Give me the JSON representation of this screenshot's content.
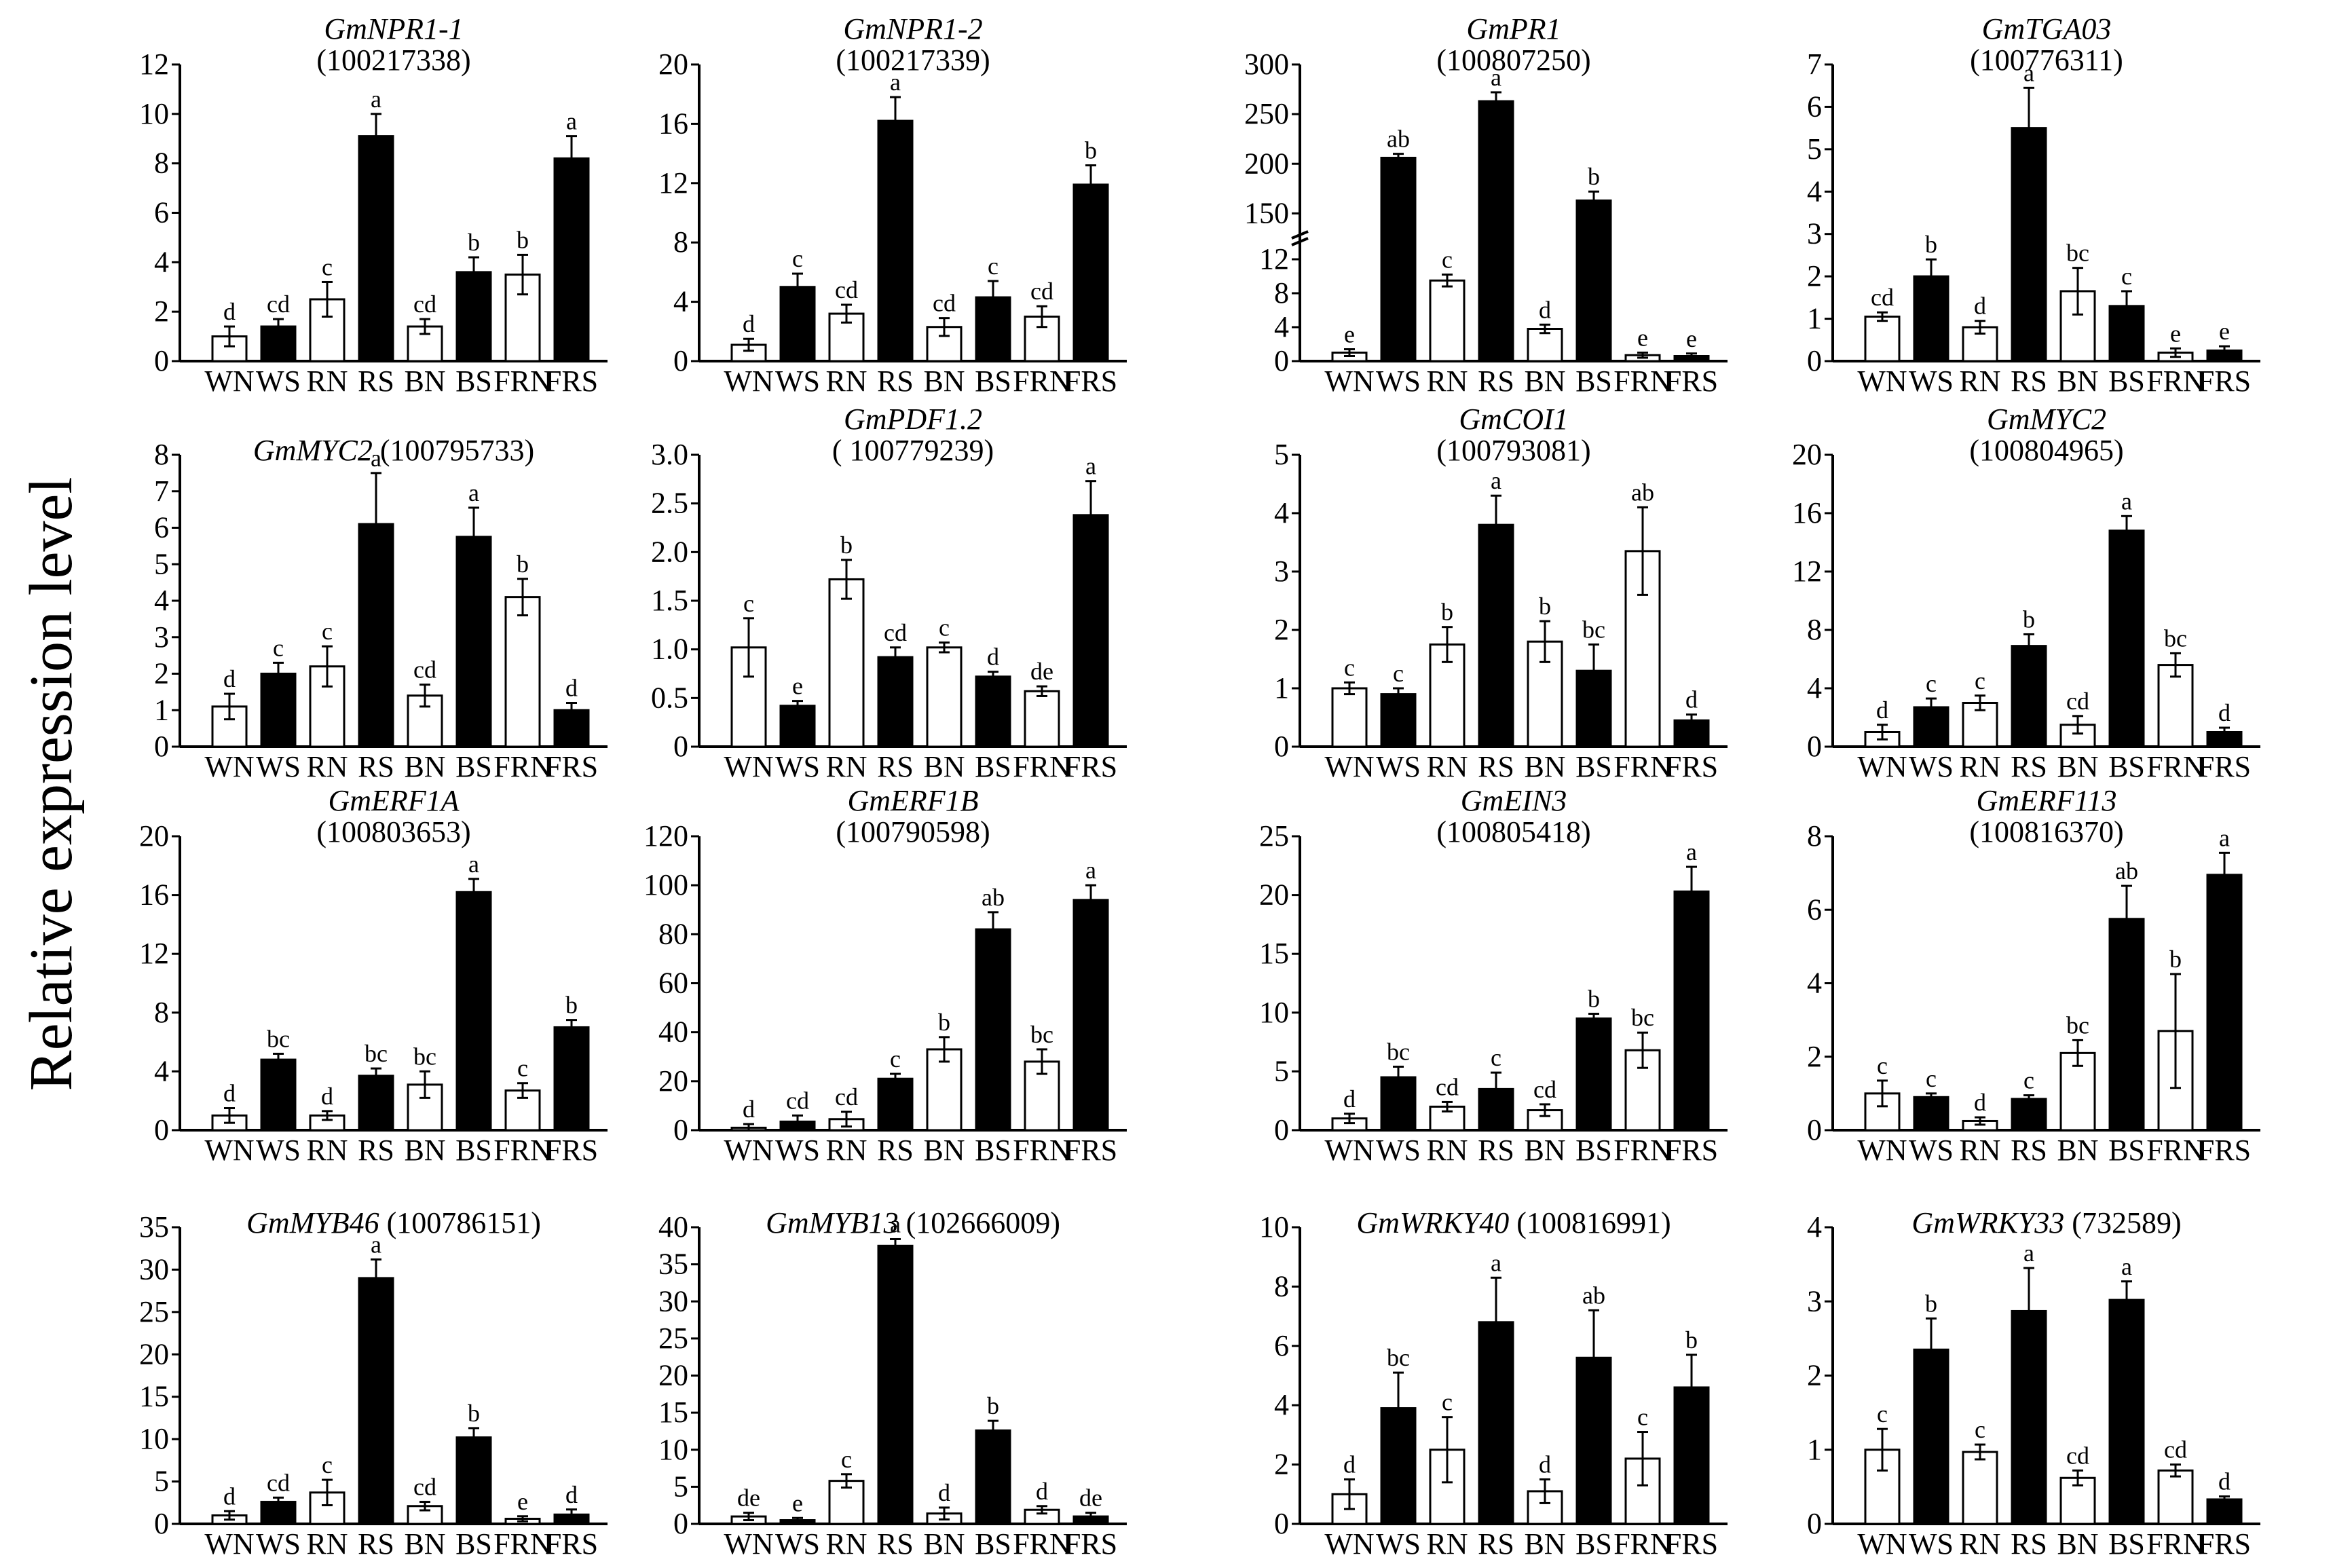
{
  "figure": {
    "y_axis_label": "Relative expression level"
  },
  "colors": {
    "filled": "#000000",
    "open": "#ffffff",
    "stroke": "#000000"
  },
  "chart_data": [
    {
      "type": "bar",
      "title": "GmNPR1-1",
      "title_id": "(100217338)",
      "ylim": [
        0,
        12
      ],
      "yticks": [
        "0",
        "2",
        "4",
        "6",
        "8",
        "10",
        "12"
      ],
      "categories": [
        "WN",
        "WS",
        "RN",
        "RS",
        "BN",
        "BS",
        "FRN",
        "FRS"
      ],
      "filled": [
        false,
        true,
        false,
        true,
        false,
        true,
        false,
        true
      ],
      "values": [
        1.0,
        1.4,
        2.5,
        9.1,
        1.4,
        3.6,
        3.5,
        8.2
      ],
      "errors": [
        0.4,
        0.3,
        0.7,
        0.9,
        0.3,
        0.6,
        0.8,
        0.9
      ],
      "letters": [
        "d",
        "cd",
        "c",
        "a",
        "cd",
        "b",
        "b",
        "a"
      ]
    },
    {
      "type": "bar",
      "title": "GmNPR1-2",
      "title_id": "(100217339)",
      "ylim": [
        0,
        20
      ],
      "yticks": [
        "0",
        "4",
        "8",
        "12",
        "16",
        "20"
      ],
      "categories": [
        "WN",
        "WS",
        "RN",
        "RS",
        "BN",
        "BS",
        "FRN",
        "FRS"
      ],
      "filled": [
        false,
        true,
        false,
        true,
        false,
        true,
        false,
        true
      ],
      "values": [
        1.1,
        5.0,
        3.2,
        16.2,
        2.3,
        4.3,
        3.0,
        11.9
      ],
      "errors": [
        0.4,
        0.9,
        0.6,
        1.6,
        0.6,
        1.1,
        0.7,
        1.3
      ],
      "letters": [
        "d",
        "c",
        "cd",
        "a",
        "cd",
        "c",
        "cd",
        "b"
      ]
    },
    {
      "type": "bar",
      "title": "GmPR1",
      "title_id": "(100807250)",
      "broken_axis": true,
      "ylim": [
        0,
        300
      ],
      "yticks": [
        "0",
        "4",
        "8",
        "12",
        "150",
        "200",
        "250",
        "300"
      ],
      "categories": [
        "WN",
        "WS",
        "RN",
        "RS",
        "BN",
        "BS",
        "FRN",
        "FRS"
      ],
      "filled": [
        false,
        true,
        false,
        true,
        false,
        true,
        false,
        true
      ],
      "values": [
        1.0,
        206,
        9.5,
        263,
        3.8,
        163,
        0.7,
        0.6
      ],
      "errors": [
        0.4,
        4,
        0.7,
        9,
        0.5,
        9,
        0.3,
        0.3
      ],
      "letters": [
        "e",
        "ab",
        "c",
        "a",
        "d",
        "b",
        "e",
        "e"
      ]
    },
    {
      "type": "bar",
      "title": "GmTGA03",
      "title_id": "(100776311)",
      "ylim": [
        0,
        7
      ],
      "yticks": [
        "0",
        "1",
        "2",
        "3",
        "4",
        "5",
        "6",
        "7"
      ],
      "categories": [
        "WN",
        "WS",
        "RN",
        "RS",
        "BN",
        "BS",
        "FRN",
        "FRS"
      ],
      "filled": [
        false,
        true,
        false,
        true,
        false,
        true,
        false,
        true
      ],
      "values": [
        1.05,
        2.0,
        0.8,
        5.5,
        1.65,
        1.3,
        0.2,
        0.25
      ],
      "errors": [
        0.1,
        0.4,
        0.15,
        0.95,
        0.55,
        0.35,
        0.1,
        0.1
      ],
      "letters": [
        "cd",
        "b",
        "d",
        "a",
        "bc",
        "c",
        "e",
        "e"
      ]
    },
    {
      "type": "bar",
      "title": "GmMYC2",
      "title_id": "(100795733)",
      "title_inline": true,
      "ylim": [
        0,
        8
      ],
      "yticks": [
        "0",
        "1",
        "2",
        "3",
        "4",
        "5",
        "6",
        "7",
        "8"
      ],
      "categories": [
        "WN",
        "WS",
        "RN",
        "RS",
        "BN",
        "BS",
        "FRN",
        "FRS"
      ],
      "filled": [
        false,
        true,
        false,
        true,
        false,
        true,
        false,
        true
      ],
      "values": [
        1.1,
        2.0,
        2.2,
        6.1,
        1.4,
        5.75,
        4.1,
        1.0
      ],
      "errors": [
        0.35,
        0.3,
        0.55,
        1.4,
        0.3,
        0.8,
        0.5,
        0.2
      ],
      "letters": [
        "d",
        "c",
        "c",
        "a",
        "cd",
        "a",
        "b",
        "d"
      ]
    },
    {
      "type": "bar",
      "title": "GmPDF1.2",
      "title_id": "( 100779239)",
      "ylim": [
        0,
        3
      ],
      "yticks": [
        "0",
        "0.5",
        "1.0",
        "1.5",
        "2.0",
        "2.5",
        "3.0"
      ],
      "categories": [
        "WN",
        "WS",
        "RN",
        "RS",
        "BN",
        "BS",
        "FRN",
        "FRS"
      ],
      "filled": [
        false,
        true,
        false,
        true,
        false,
        true,
        false,
        true
      ],
      "values": [
        1.02,
        0.42,
        1.72,
        0.92,
        1.02,
        0.72,
        0.57,
        2.38
      ],
      "errors": [
        0.3,
        0.05,
        0.2,
        0.1,
        0.05,
        0.05,
        0.05,
        0.35
      ],
      "letters": [
        "c",
        "e",
        "b",
        "cd",
        "c",
        "d",
        "de",
        "a"
      ]
    },
    {
      "type": "bar",
      "title": "GmCOI1",
      "title_id": "(100793081)",
      "ylim": [
        0,
        5
      ],
      "yticks": [
        "0",
        "1",
        "2",
        "3",
        "4",
        "5"
      ],
      "categories": [
        "WN",
        "WS",
        "RN",
        "RS",
        "BN",
        "BS",
        "FRN",
        "FRS"
      ],
      "filled": [
        false,
        true,
        false,
        true,
        false,
        true,
        false,
        true
      ],
      "values": [
        1.0,
        0.9,
        1.75,
        3.8,
        1.8,
        1.3,
        3.35,
        0.45
      ],
      "errors": [
        0.1,
        0.1,
        0.3,
        0.5,
        0.35,
        0.45,
        0.75,
        0.1
      ],
      "letters": [
        "c",
        "c",
        "b",
        "a",
        "b",
        "bc",
        "ab",
        "d"
      ]
    },
    {
      "type": "bar",
      "title": "GmMYC2",
      "title_id": "(100804965)",
      "ylim": [
        0,
        20
      ],
      "yticks": [
        "0",
        "4",
        "8",
        "12",
        "16",
        "20"
      ],
      "categories": [
        "WN",
        "WS",
        "RN",
        "RS",
        "BN",
        "BS",
        "FRN",
        "FRS"
      ],
      "filled": [
        false,
        true,
        false,
        true,
        false,
        true,
        false,
        true
      ],
      "values": [
        1.0,
        2.7,
        3.0,
        6.9,
        1.5,
        14.8,
        5.6,
        1.0
      ],
      "errors": [
        0.5,
        0.6,
        0.5,
        0.8,
        0.6,
        1.0,
        0.8,
        0.3
      ],
      "letters": [
        "d",
        "c",
        "c",
        "b",
        "cd",
        "a",
        "bc",
        "d"
      ]
    },
    {
      "type": "bar",
      "title": "GmERF1A",
      "title_id": "(100803653)",
      "ylim": [
        0,
        20
      ],
      "yticks": [
        "0",
        "4",
        "8",
        "12",
        "16",
        "20"
      ],
      "categories": [
        "WN",
        "WS",
        "RN",
        "RS",
        "BN",
        "BS",
        "FRN",
        "FRS"
      ],
      "filled": [
        false,
        true,
        false,
        true,
        false,
        true,
        false,
        true
      ],
      "values": [
        1.0,
        4.8,
        1.0,
        3.7,
        3.1,
        16.2,
        2.7,
        7.0
      ],
      "errors": [
        0.5,
        0.4,
        0.3,
        0.5,
        0.9,
        0.9,
        0.5,
        0.5
      ],
      "letters": [
        "d",
        "bc",
        "d",
        "bc",
        "bc",
        "a",
        "c",
        "b"
      ]
    },
    {
      "type": "bar",
      "title": "GmERF1B",
      "title_id": "(100790598)",
      "ylim": [
        0,
        120
      ],
      "yticks": [
        "0",
        "20",
        "40",
        "60",
        "80",
        "100",
        "120"
      ],
      "categories": [
        "WN",
        "WS",
        "RN",
        "RS",
        "BN",
        "BS",
        "FRN",
        "FRS"
      ],
      "filled": [
        false,
        true,
        false,
        true,
        false,
        true,
        false,
        true
      ],
      "values": [
        1.0,
        3.5,
        4.5,
        21,
        33,
        82,
        28,
        94
      ],
      "errors": [
        1.5,
        2.5,
        3,
        2,
        5,
        7,
        5,
        6
      ],
      "letters": [
        "d",
        "cd",
        "cd",
        "c",
        "b",
        "ab",
        "bc",
        "a"
      ]
    },
    {
      "type": "bar",
      "title": "GmEIN3",
      "title_id": "(100805418)",
      "ylim": [
        0,
        25
      ],
      "yticks": [
        "0",
        "5",
        "10",
        "15",
        "20",
        "25"
      ],
      "categories": [
        "WN",
        "WS",
        "RN",
        "RS",
        "BN",
        "BS",
        "FRN",
        "FRS"
      ],
      "filled": [
        false,
        true,
        false,
        true,
        false,
        true,
        false,
        true
      ],
      "values": [
        1.0,
        4.5,
        2.0,
        3.5,
        1.7,
        9.5,
        6.8,
        20.3
      ],
      "errors": [
        0.4,
        0.9,
        0.4,
        1.4,
        0.5,
        0.4,
        1.5,
        2.1
      ],
      "letters": [
        "d",
        "bc",
        "cd",
        "c",
        "cd",
        "b",
        "bc",
        "a"
      ]
    },
    {
      "type": "bar",
      "title": "GmERF113",
      "title_id": "(100816370)",
      "ylim": [
        0,
        8
      ],
      "yticks": [
        "0",
        "2",
        "4",
        "6",
        "8"
      ],
      "categories": [
        "WN",
        "WS",
        "RN",
        "RS",
        "BN",
        "BS",
        "FRN",
        "FRS"
      ],
      "filled": [
        false,
        true,
        false,
        true,
        false,
        true,
        false,
        true
      ],
      "values": [
        1.0,
        0.9,
        0.25,
        0.85,
        2.1,
        5.75,
        2.7,
        6.95
      ],
      "errors": [
        0.35,
        0.1,
        0.1,
        0.1,
        0.35,
        0.9,
        1.55,
        0.6
      ],
      "letters": [
        "c",
        "c",
        "d",
        "c",
        "bc",
        "ab",
        "b",
        "a"
      ]
    },
    {
      "type": "bar",
      "title": "GmMYB46",
      "title_id": "(100786151)",
      "title_inline": true,
      "ylim": [
        0,
        35
      ],
      "yticks": [
        "0",
        "5",
        "10",
        "15",
        "20",
        "25",
        "30",
        "35"
      ],
      "categories": [
        "WN",
        "WS",
        "RN",
        "RS",
        "BN",
        "BS",
        "FRN",
        "FRS"
      ],
      "filled": [
        false,
        true,
        false,
        true,
        false,
        true,
        false,
        true
      ],
      "values": [
        1.0,
        2.6,
        3.7,
        29,
        2.1,
        10.2,
        0.6,
        1.1
      ],
      "errors": [
        0.5,
        0.5,
        1.5,
        2.2,
        0.5,
        1.1,
        0.3,
        0.6
      ],
      "letters": [
        "d",
        "cd",
        "c",
        "a",
        "cd",
        "b",
        "e",
        "d"
      ]
    },
    {
      "type": "bar",
      "title": "GmMYB13",
      "title_id": "(102666009)",
      "title_inline": true,
      "ylim": [
        0,
        40
      ],
      "yticks": [
        "0",
        "5",
        "10",
        "15",
        "20",
        "25",
        "30",
        "35",
        "40"
      ],
      "categories": [
        "WN",
        "WS",
        "RN",
        "RS",
        "BN",
        "BS",
        "FRN",
        "FRS"
      ],
      "filled": [
        false,
        true,
        false,
        true,
        false,
        true,
        false,
        true
      ],
      "values": [
        1.0,
        0.5,
        5.8,
        37.5,
        1.4,
        12.6,
        1.9,
        1.0
      ],
      "errors": [
        0.5,
        0.3,
        0.9,
        0.9,
        0.8,
        1.3,
        0.5,
        0.5
      ],
      "letters": [
        "de",
        "e",
        "c",
        "a",
        "d",
        "b",
        "d",
        "de"
      ]
    },
    {
      "type": "bar",
      "title": "GmWRKY40",
      "title_id": "(100816991)",
      "title_inline": true,
      "ylim": [
        0,
        10
      ],
      "yticks": [
        "0",
        "2",
        "4",
        "6",
        "8",
        "10"
      ],
      "categories": [
        "WN",
        "WS",
        "RN",
        "RS",
        "BN",
        "BS",
        "FRN",
        "FRS"
      ],
      "filled": [
        false,
        true,
        false,
        true,
        false,
        true,
        false,
        true
      ],
      "values": [
        1.0,
        3.9,
        2.5,
        6.8,
        1.1,
        5.6,
        2.2,
        4.6
      ],
      "errors": [
        0.5,
        1.2,
        1.1,
        1.5,
        0.4,
        1.6,
        0.9,
        1.1
      ],
      "letters": [
        "d",
        "bc",
        "c",
        "a",
        "d",
        "ab",
        "c",
        "b"
      ]
    },
    {
      "type": "bar",
      "title": "GmWRKY33",
      "title_id": "(732589)",
      "title_inline": true,
      "ylim": [
        0,
        4
      ],
      "yticks": [
        "0",
        "1",
        "2",
        "3",
        "4"
      ],
      "categories": [
        "WN",
        "WS",
        "RN",
        "RS",
        "BN",
        "BS",
        "FRN",
        "FRS"
      ],
      "filled": [
        false,
        true,
        false,
        true,
        false,
        true,
        false,
        true
      ],
      "values": [
        1.0,
        2.35,
        0.97,
        2.87,
        0.62,
        3.02,
        0.72,
        0.33
      ],
      "errors": [
        0.28,
        0.42,
        0.1,
        0.58,
        0.1,
        0.25,
        0.08,
        0.04
      ],
      "letters": [
        "c",
        "b",
        "c",
        "a",
        "cd",
        "a",
        "cd",
        "d"
      ]
    }
  ]
}
